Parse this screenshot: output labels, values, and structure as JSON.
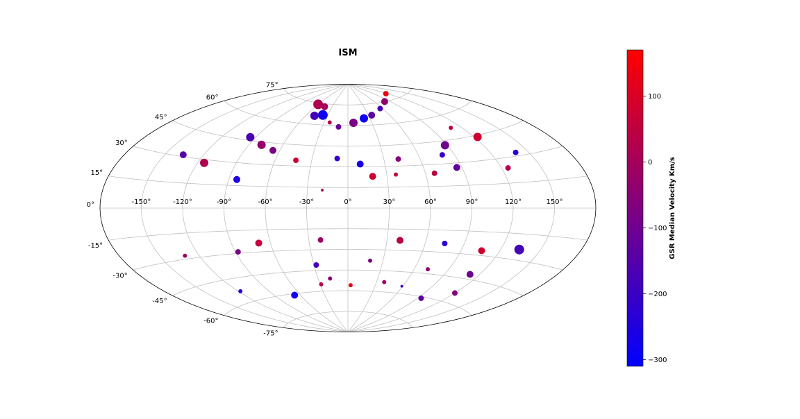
{
  "chart_data": {
    "type": "scatter",
    "projection": "aitoff",
    "title": "ISM",
    "grid": true,
    "lon_ticks": [
      "-150°",
      "-120°",
      "-90°",
      "-60°",
      "-30°",
      "0°",
      "30°",
      "60°",
      "90°",
      "120°",
      "150°"
    ],
    "lat_ticks": [
      "-75°",
      "-60°",
      "-45°",
      "-30°",
      "-15°",
      "0°",
      "15°",
      "30°",
      "45°",
      "60°",
      "75°"
    ],
    "colorbar": {
      "label": "GSR Median Velocity Km/s",
      "range": [
        -310,
        170
      ],
      "ticks": [
        "100",
        "0",
        "−100",
        "−200",
        "−300"
      ],
      "colors": {
        "low": "#0000ff",
        "mid": "#800080",
        "high": "#ff0000"
      },
      "placement": "right"
    },
    "points": [
      {
        "lon": -60,
        "lat": 74,
        "v": 20,
        "size": 7
      },
      {
        "lon": -44,
        "lat": 73,
        "v": 0,
        "size": 5
      },
      {
        "lon": -48,
        "lat": 66,
        "v": -180,
        "size": 6
      },
      {
        "lon": -37,
        "lat": 67,
        "v": -280,
        "size": 7
      },
      {
        "lon": -23,
        "lat": 62,
        "v": 40,
        "size": 3
      },
      {
        "lon": -11,
        "lat": 59,
        "v": -120,
        "size": 4
      },
      {
        "lon": 7,
        "lat": 62,
        "v": -80,
        "size": 6
      },
      {
        "lon": 22,
        "lat": 65,
        "v": -280,
        "size": 6
      },
      {
        "lon": 35,
        "lat": 67,
        "v": -140,
        "size": 5
      },
      {
        "lon": 56,
        "lat": 71,
        "v": -170,
        "size": 4
      },
      {
        "lon": 80,
        "lat": 75,
        "v": -40,
        "size": 5
      },
      {
        "lon": 117,
        "lat": 79,
        "v": 140,
        "size": 4
      },
      {
        "lon": -95,
        "lat": 47,
        "v": -170,
        "size": 6
      },
      {
        "lon": -79,
        "lat": 43,
        "v": -30,
        "size": 6
      },
      {
        "lon": -66,
        "lat": 40,
        "v": -80,
        "size": 5
      },
      {
        "lon": -43,
        "lat": 34,
        "v": 80,
        "size": 4
      },
      {
        "lon": -9,
        "lat": 36,
        "v": -220,
        "size": 4
      },
      {
        "lon": 10,
        "lat": 32,
        "v": -260,
        "size": 5
      },
      {
        "lon": 42,
        "lat": 35,
        "v": -60,
        "size": 4
      },
      {
        "lon": 80,
        "lat": 36,
        "v": -210,
        "size": 4
      },
      {
        "lon": 88,
        "lat": 42,
        "v": -100,
        "size": 6
      },
      {
        "lon": 110,
        "lat": 52,
        "v": 40,
        "size": 3
      },
      {
        "lon": 123,
        "lat": 44,
        "v": 80,
        "size": 6
      },
      {
        "lon": 140,
        "lat": 32,
        "v": -250,
        "size": 4
      },
      {
        "lon": -136,
        "lat": 31,
        "v": -150,
        "size": 5
      },
      {
        "lon": -115,
        "lat": 28,
        "v": 20,
        "size": 6
      },
      {
        "lon": -84,
        "lat": 19,
        "v": -250,
        "size": 5
      },
      {
        "lon": 19,
        "lat": 23,
        "v": 80,
        "size": 5
      },
      {
        "lon": 37,
        "lat": 24,
        "v": 60,
        "size": 3
      },
      {
        "lon": 67,
        "lat": 24,
        "v": 40,
        "size": 4
      },
      {
        "lon": 86,
        "lat": 27,
        "v": -130,
        "size": 5
      },
      {
        "lon": 125,
        "lat": 24,
        "v": 30,
        "size": 4
      },
      {
        "lon": -19,
        "lat": 13,
        "v": 20,
        "size": 2
      },
      {
        "lon": -131,
        "lat": -28,
        "v": -20,
        "size": 3
      },
      {
        "lon": -88,
        "lat": -29,
        "v": -80,
        "size": 4
      },
      {
        "lon": -69,
        "lat": -24,
        "v": 60,
        "size": 5
      },
      {
        "lon": -21,
        "lat": -23,
        "v": -20,
        "size": 4
      },
      {
        "lon": 40,
        "lat": -23,
        "v": 40,
        "size": 5
      },
      {
        "lon": 75,
        "lat": -24,
        "v": -220,
        "size": 4
      },
      {
        "lon": 106,
        "lat": -27,
        "v": 80,
        "size": 5
      },
      {
        "lon": 134,
        "lat": -24,
        "v": -180,
        "size": 7
      },
      {
        "lon": -118,
        "lat": -53,
        "v": -250,
        "size": 3
      },
      {
        "lon": -28,
        "lat": -41,
        "v": -180,
        "size": 4
      },
      {
        "lon": 19,
        "lat": -38,
        "v": -80,
        "size": 3
      },
      {
        "lon": 72,
        "lat": -42,
        "v": -40,
        "size": 3
      },
      {
        "lon": 112,
        "lat": -42,
        "v": -100,
        "size": 5
      },
      {
        "lon": -67,
        "lat": -61,
        "v": -280,
        "size": 5
      },
      {
        "lon": -29,
        "lat": -55,
        "v": 30,
        "size": 3
      },
      {
        "lon": -18,
        "lat": -51,
        "v": -60,
        "size": 3
      },
      {
        "lon": 3,
        "lat": -56,
        "v": 140,
        "size": 3
      },
      {
        "lon": 38,
        "lat": -53,
        "v": -20,
        "size": 3
      },
      {
        "lon": 59,
        "lat": -55,
        "v": -180,
        "size": 2
      },
      {
        "lon": 120,
        "lat": -54,
        "v": -60,
        "size": 4
      },
      {
        "lon": 94,
        "lat": -61,
        "v": -130,
        "size": 4
      }
    ]
  }
}
